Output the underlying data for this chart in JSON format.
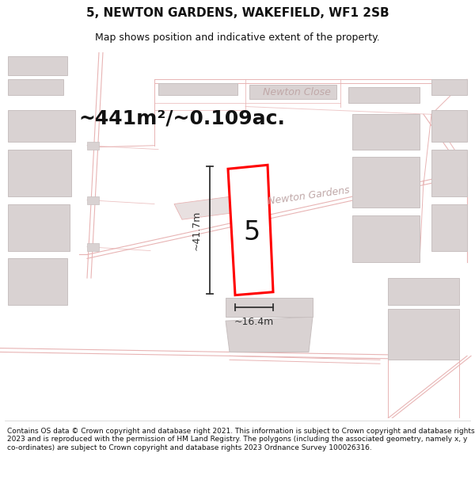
{
  "title_line1": "5, NEWTON GARDENS, WAKEFIELD, WF1 2SB",
  "title_line2": "Map shows position and indicative extent of the property.",
  "area_text": "~441m²/~0.109ac.",
  "width_label": "~16.4m",
  "height_label": "~41.7m",
  "plot_number": "5",
  "street_label1": "Newton Close",
  "street_label2": "Newton Gardens",
  "footer_text": "Contains OS data © Crown copyright and database right 2021. This information is subject to Crown copyright and database rights 2023 and is reproduced with the permission of HM Land Registry. The polygons (including the associated geometry, namely x, y co-ordinates) are subject to Crown copyright and database rights 2023 Ordnance Survey 100026316.",
  "map_bg": "#f7f3f3",
  "road_color": "#e8b4b4",
  "building_fill": "#d9d2d2",
  "building_edge": "#c8c0c0",
  "highlight_color": "#ff0000",
  "text_color": "#111111",
  "road_label_color": "#c0a8a8",
  "dim_color": "#333333",
  "title_size": 11,
  "subtitle_size": 9,
  "area_fontsize": 18,
  "plot_num_size": 24,
  "street_label_size": 9,
  "dim_label_size": 9,
  "footer_size": 6.5
}
